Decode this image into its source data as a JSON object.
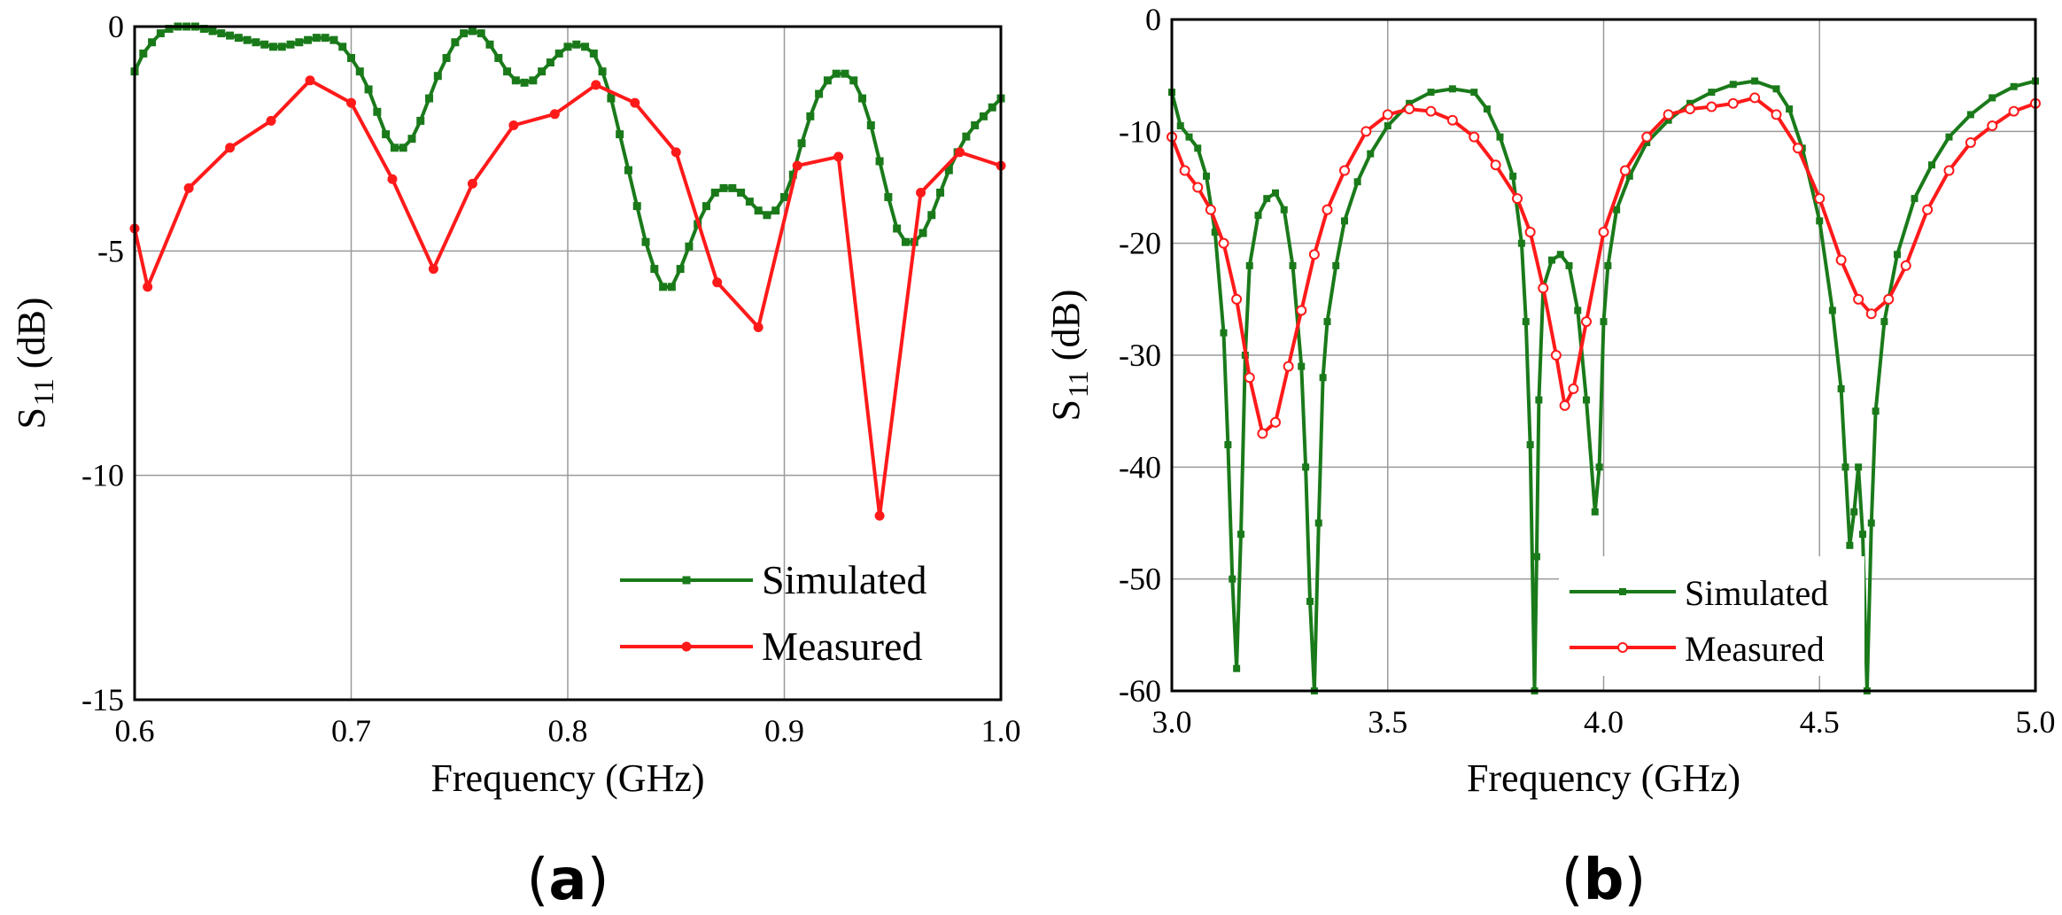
{
  "chart_data": [
    {
      "type": "line",
      "panel_label": "a",
      "xlabel": "Frequency (GHz)",
      "ylabel_main": "S",
      "ylabel_sub": "11",
      "ylabel_unit": " (dB)",
      "xlim": [
        0.6,
        1.0
      ],
      "ylim": [
        -15,
        0
      ],
      "xticks": [
        "0.6",
        "0.7",
        "0.8",
        "0.9",
        "1.0"
      ],
      "yticks": [
        "0",
        "-5",
        "-10",
        "-15"
      ],
      "legend_position": "lower-right",
      "series": [
        {
          "name": "Simulated",
          "color": "#1a7a1a",
          "marker": "square",
          "x": [
            0.6,
            0.604,
            0.608,
            0.612,
            0.616,
            0.62,
            0.624,
            0.628,
            0.632,
            0.636,
            0.64,
            0.644,
            0.648,
            0.652,
            0.656,
            0.66,
            0.664,
            0.668,
            0.672,
            0.676,
            0.68,
            0.684,
            0.688,
            0.692,
            0.696,
            0.7,
            0.704,
            0.708,
            0.712,
            0.716,
            0.72,
            0.724,
            0.728,
            0.732,
            0.736,
            0.74,
            0.744,
            0.748,
            0.752,
            0.756,
            0.76,
            0.764,
            0.768,
            0.772,
            0.776,
            0.78,
            0.784,
            0.788,
            0.792,
            0.796,
            0.8,
            0.804,
            0.808,
            0.812,
            0.816,
            0.82,
            0.824,
            0.828,
            0.832,
            0.836,
            0.84,
            0.844,
            0.848,
            0.852,
            0.856,
            0.86,
            0.864,
            0.868,
            0.872,
            0.876,
            0.88,
            0.884,
            0.888,
            0.892,
            0.896,
            0.9,
            0.904,
            0.908,
            0.912,
            0.916,
            0.92,
            0.924,
            0.928,
            0.932,
            0.936,
            0.94,
            0.944,
            0.948,
            0.952,
            0.956,
            0.96,
            0.964,
            0.968,
            0.972,
            0.976,
            0.98,
            0.984,
            0.988,
            0.992,
            0.996,
            1.0
          ],
          "y": [
            -1.0,
            -0.6,
            -0.35,
            -0.15,
            -0.05,
            0.0,
            0.0,
            0.0,
            -0.05,
            -0.1,
            -0.15,
            -0.2,
            -0.25,
            -0.3,
            -0.35,
            -0.4,
            -0.45,
            -0.45,
            -0.4,
            -0.35,
            -0.3,
            -0.25,
            -0.25,
            -0.3,
            -0.45,
            -0.7,
            -1.0,
            -1.4,
            -1.9,
            -2.4,
            -2.7,
            -2.7,
            -2.5,
            -2.1,
            -1.6,
            -1.1,
            -0.7,
            -0.35,
            -0.15,
            -0.1,
            -0.15,
            -0.4,
            -0.7,
            -1.0,
            -1.2,
            -1.25,
            -1.2,
            -1.0,
            -0.8,
            -0.6,
            -0.45,
            -0.4,
            -0.45,
            -0.6,
            -1.0,
            -1.6,
            -2.4,
            -3.2,
            -4.0,
            -4.8,
            -5.4,
            -5.8,
            -5.8,
            -5.4,
            -4.9,
            -4.4,
            -4.0,
            -3.7,
            -3.6,
            -3.6,
            -3.7,
            -3.9,
            -4.1,
            -4.2,
            -4.1,
            -3.8,
            -3.3,
            -2.6,
            -2.0,
            -1.5,
            -1.2,
            -1.05,
            -1.05,
            -1.2,
            -1.6,
            -2.2,
            -3.0,
            -3.8,
            -4.5,
            -4.8,
            -4.8,
            -4.6,
            -4.2,
            -3.7,
            -3.2,
            -2.8,
            -2.45,
            -2.2,
            -2.0,
            -1.8,
            -1.6
          ]
        },
        {
          "name": "Measured",
          "color": "#ff1a1a",
          "marker": "circle",
          "x": [
            0.6,
            0.606,
            0.625,
            0.644,
            0.663,
            0.681,
            0.7,
            0.719,
            0.738,
            0.756,
            0.775,
            0.794,
            0.813,
            0.831,
            0.85,
            0.869,
            0.888,
            0.906,
            0.925,
            0.944,
            0.963,
            0.981,
            1.0
          ],
          "y": [
            -4.5,
            -5.8,
            -3.6,
            -2.7,
            -2.1,
            -1.2,
            -1.7,
            -3.4,
            -5.4,
            -3.5,
            -2.2,
            -1.95,
            -1.3,
            -1.7,
            -2.8,
            -5.7,
            -6.7,
            -3.1,
            -2.9,
            -10.9,
            -3.7,
            -2.8,
            -3.1
          ]
        }
      ]
    },
    {
      "type": "line",
      "panel_label": "b",
      "xlabel": "Frequency (GHz)",
      "ylabel_main": "S",
      "ylabel_sub": "11",
      "ylabel_unit": " (dB)",
      "xlim": [
        3.0,
        5.0
      ],
      "ylim": [
        -60,
        0
      ],
      "xticks": [
        "3.0",
        "3.5",
        "4.0",
        "4.5",
        "5.0"
      ],
      "yticks": [
        "0",
        "-10",
        "-20",
        "-30",
        "-40",
        "-50",
        "-60"
      ],
      "legend_position": "lower-center",
      "series": [
        {
          "name": "Simulated",
          "color": "#1a7a1a",
          "marker": "square",
          "x": [
            3.0,
            3.02,
            3.04,
            3.06,
            3.08,
            3.1,
            3.12,
            3.13,
            3.14,
            3.15,
            3.16,
            3.17,
            3.18,
            3.2,
            3.22,
            3.24,
            3.26,
            3.28,
            3.3,
            3.31,
            3.32,
            3.33,
            3.34,
            3.35,
            3.36,
            3.38,
            3.4,
            3.43,
            3.46,
            3.5,
            3.55,
            3.6,
            3.65,
            3.7,
            3.73,
            3.76,
            3.79,
            3.81,
            3.82,
            3.83,
            3.84,
            3.845,
            3.85,
            3.86,
            3.88,
            3.9,
            3.92,
            3.94,
            3.96,
            3.98,
            3.99,
            4.0,
            4.01,
            4.03,
            4.06,
            4.1,
            4.15,
            4.2,
            4.25,
            4.3,
            4.35,
            4.4,
            4.43,
            4.46,
            4.5,
            4.53,
            4.55,
            4.56,
            4.57,
            4.58,
            4.59,
            4.6,
            4.61,
            4.62,
            4.63,
            4.65,
            4.68,
            4.72,
            4.76,
            4.8,
            4.85,
            4.9,
            4.95,
            5.0
          ],
          "y": [
            -6.5,
            -9.5,
            -10.5,
            -11.5,
            -14,
            -19,
            -28,
            -38,
            -50,
            -58,
            -46,
            -30,
            -22,
            -17.5,
            -16,
            -15.5,
            -17,
            -22,
            -31,
            -40,
            -52,
            -60,
            -45,
            -32,
            -27,
            -22,
            -18,
            -14.5,
            -12,
            -9.5,
            -7.5,
            -6.5,
            -6.2,
            -6.5,
            -8,
            -10.5,
            -14,
            -20,
            -27,
            -38,
            -60,
            -48,
            -34,
            -24,
            -21.5,
            -21,
            -22,
            -26,
            -34,
            -44,
            -40,
            -27,
            -22,
            -17,
            -14,
            -11,
            -9,
            -7.5,
            -6.5,
            -5.8,
            -5.5,
            -6.2,
            -8,
            -11.5,
            -18,
            -26,
            -33,
            -40,
            -47,
            -44,
            -40,
            -46,
            -60,
            -45,
            -35,
            -27,
            -21,
            -16,
            -13,
            -10.5,
            -8.5,
            -7,
            -6,
            -5.5
          ]
        },
        {
          "name": "Measured",
          "color": "#ff1a1a",
          "marker": "open-circle",
          "x": [
            3.0,
            3.03,
            3.06,
            3.09,
            3.12,
            3.15,
            3.18,
            3.21,
            3.24,
            3.27,
            3.3,
            3.33,
            3.36,
            3.4,
            3.45,
            3.5,
            3.55,
            3.6,
            3.65,
            3.7,
            3.75,
            3.8,
            3.83,
            3.86,
            3.89,
            3.91,
            3.93,
            3.96,
            4.0,
            4.05,
            4.1,
            4.15,
            4.2,
            4.25,
            4.3,
            4.35,
            4.4,
            4.45,
            4.5,
            4.55,
            4.59,
            4.62,
            4.66,
            4.7,
            4.75,
            4.8,
            4.85,
            4.9,
            4.95,
            5.0
          ],
          "y": [
            -10.5,
            -13.5,
            -15,
            -17,
            -20,
            -25,
            -32,
            -37,
            -36,
            -31,
            -26,
            -21,
            -17,
            -13.5,
            -10,
            -8.5,
            -8,
            -8.2,
            -9,
            -10.5,
            -13,
            -16,
            -19,
            -24,
            -30,
            -34.5,
            -33,
            -27,
            -19,
            -13.5,
            -10.5,
            -8.5,
            -8,
            -7.8,
            -7.5,
            -7,
            -8.5,
            -11.5,
            -16,
            -21.5,
            -25,
            -26.3,
            -25,
            -22,
            -17,
            -13.5,
            -11,
            -9.5,
            -8.2,
            -7.5
          ]
        }
      ]
    }
  ]
}
